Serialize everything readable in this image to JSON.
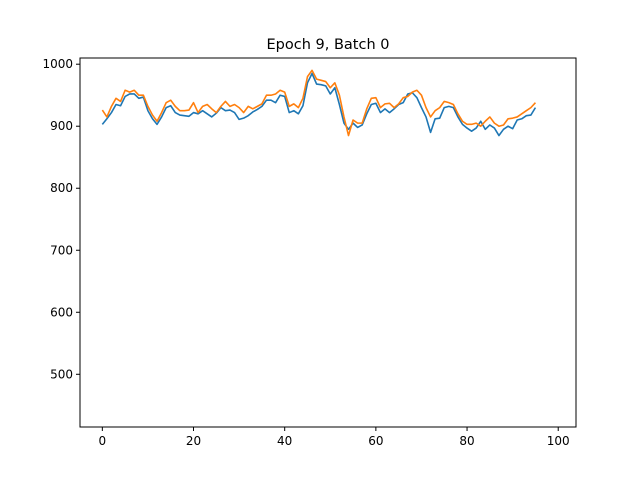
{
  "chart_data": {
    "type": "line",
    "title": "Epoch 9, Batch 0",
    "xlabel": "",
    "ylabel": "",
    "xlim": [
      -4.9,
      103.9
    ],
    "ylim": [
      415,
      1010
    ],
    "xticks": [
      0,
      20,
      40,
      60,
      80,
      100
    ],
    "yticks": [
      500,
      600,
      700,
      800,
      900,
      1000
    ],
    "grid": false,
    "series": [
      {
        "color": "#1f77b4",
        "values": [
          903,
          912,
          922,
          935,
          933,
          948,
          952,
          952,
          945,
          947,
          925,
          912,
          903,
          915,
          930,
          933,
          922,
          918,
          917,
          916,
          922,
          920,
          925,
          920,
          915,
          921,
          930,
          925,
          926,
          922,
          911,
          913,
          917,
          923,
          927,
          932,
          942,
          942,
          938,
          950,
          948,
          922,
          925,
          920,
          933,
          970,
          985,
          968,
          967,
          965,
          952,
          962,
          935,
          905,
          895,
          905,
          898,
          902,
          920,
          935,
          937,
          922,
          928,
          922,
          928,
          935,
          938,
          952,
          954,
          946,
          930,
          915,
          890,
          912,
          913,
          930,
          932,
          930,
          915,
          903,
          897,
          892,
          897,
          908,
          895,
          902,
          897,
          885,
          895,
          900,
          896,
          910,
          912,
          917,
          918,
          930
        ],
        "x_offset": 0
      },
      {
        "color": "#ff7f0e",
        "values": [
          926,
          915,
          932,
          945,
          940,
          958,
          955,
          958,
          950,
          950,
          932,
          918,
          908,
          922,
          938,
          942,
          932,
          925,
          925,
          926,
          938,
          922,
          932,
          935,
          928,
          922,
          932,
          940,
          932,
          935,
          930,
          922,
          932,
          928,
          932,
          936,
          950,
          950,
          952,
          958,
          955,
          932,
          936,
          930,
          945,
          980,
          990,
          976,
          974,
          972,
          962,
          970,
          950,
          915,
          885,
          910,
          905,
          905,
          928,
          945,
          946,
          930,
          936,
          937,
          930,
          936,
          946,
          948,
          955,
          958,
          950,
          930,
          915,
          925,
          930,
          940,
          938,
          935,
          920,
          908,
          903,
          903,
          905,
          900,
          908,
          915,
          905,
          900,
          902,
          912,
          913,
          915,
          920,
          925,
          930,
          938
        ],
        "x_offset": 0
      }
    ]
  }
}
